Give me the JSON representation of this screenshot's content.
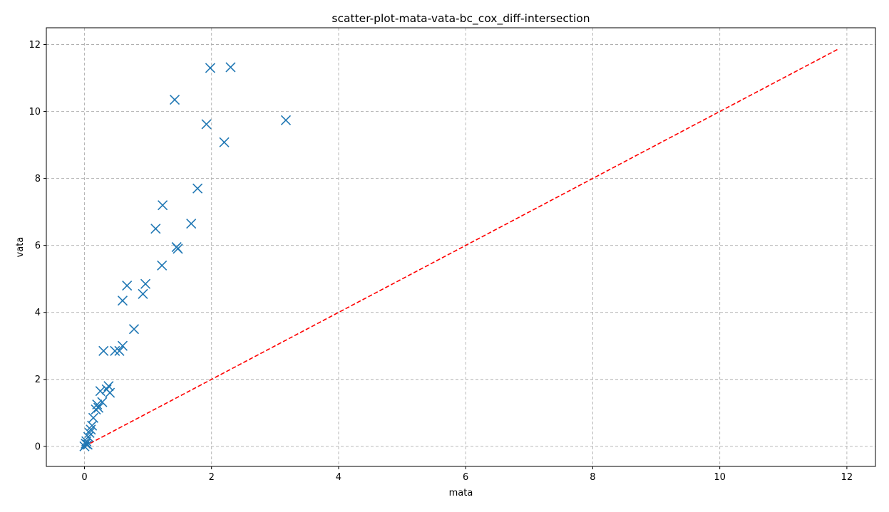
{
  "chart_data": {
    "type": "scatter",
    "title": "scatter-plot-mata-vata-bc_cox_diff-intersection",
    "xlabel": "mata",
    "ylabel": "vata",
    "xlim": [
      -0.6,
      12.45
    ],
    "ylim": [
      -0.6,
      12.5
    ],
    "xticks": [
      0,
      2,
      4,
      6,
      8,
      10,
      12
    ],
    "yticks": [
      0,
      2,
      4,
      6,
      8,
      10,
      12
    ],
    "xtick_labels": [
      "0",
      "2",
      "4",
      "6",
      "8",
      "10",
      "12"
    ],
    "ytick_labels": [
      "0",
      "2",
      "4",
      "6",
      "8",
      "10",
      "12"
    ],
    "grid": true,
    "marker": "x",
    "series": [
      {
        "color": "#1f77b4",
        "points": [
          [
            0.0,
            0.0
          ],
          [
            0.02,
            0.08
          ],
          [
            0.03,
            0.15
          ],
          [
            0.05,
            0.05
          ],
          [
            0.06,
            0.28
          ],
          [
            0.08,
            0.4
          ],
          [
            0.1,
            0.5
          ],
          [
            0.12,
            0.62
          ],
          [
            0.14,
            0.85
          ],
          [
            0.18,
            1.1
          ],
          [
            0.2,
            1.25
          ],
          [
            0.22,
            1.15
          ],
          [
            0.25,
            1.65
          ],
          [
            0.28,
            1.32
          ],
          [
            0.3,
            2.85
          ],
          [
            0.35,
            1.7
          ],
          [
            0.38,
            1.8
          ],
          [
            0.4,
            1.6
          ],
          [
            0.48,
            2.85
          ],
          [
            0.55,
            2.85
          ],
          [
            0.6,
            3.0
          ],
          [
            0.6,
            4.35
          ],
          [
            0.67,
            4.8
          ],
          [
            0.78,
            3.5
          ],
          [
            0.92,
            4.55
          ],
          [
            0.96,
            4.85
          ],
          [
            1.12,
            6.5
          ],
          [
            1.22,
            5.4
          ],
          [
            1.23,
            7.2
          ],
          [
            1.42,
            10.35
          ],
          [
            1.45,
            5.95
          ],
          [
            1.47,
            5.9
          ],
          [
            1.68,
            6.65
          ],
          [
            1.78,
            7.7
          ],
          [
            1.92,
            9.62
          ],
          [
            1.98,
            11.3
          ],
          [
            2.2,
            9.08
          ],
          [
            2.3,
            11.32
          ],
          [
            3.17,
            9.74
          ]
        ]
      },
      {
        "style": "dashed-line",
        "color": "#ff0000",
        "x": [
          0,
          11.88
        ],
        "y": [
          0,
          11.88
        ]
      }
    ]
  }
}
